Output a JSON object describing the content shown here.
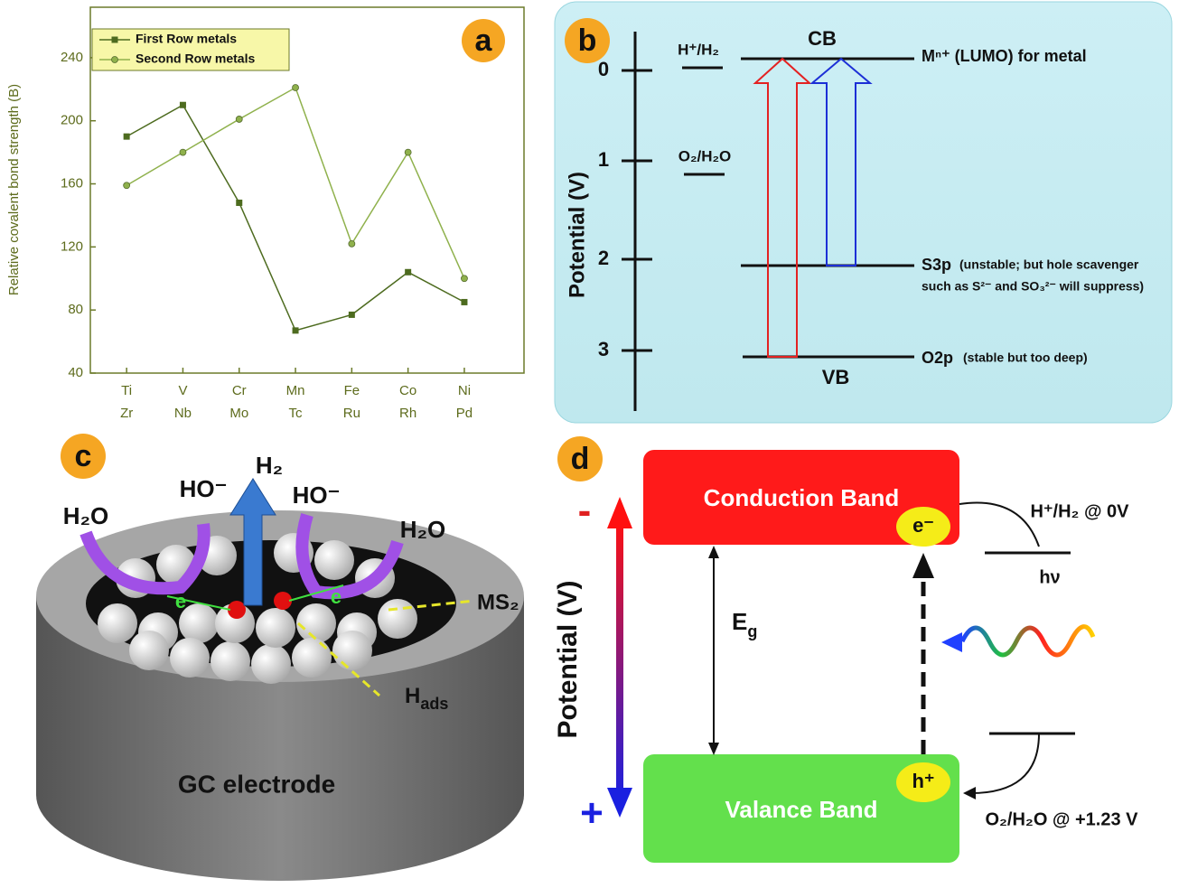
{
  "chart_data": {
    "type": "line",
    "panel_label": "a",
    "y_label": "Relative covalent bond strength (B)",
    "categories": [
      [
        "Ti",
        "Zr"
      ],
      [
        "V",
        "Nb"
      ],
      [
        "Cr",
        "Mo"
      ],
      [
        "Mn",
        "Tc"
      ],
      [
        "Fe",
        "Ru"
      ],
      [
        "Co",
        "Rh"
      ],
      [
        "Ni",
        "Pd"
      ]
    ],
    "series": [
      {
        "name": "First Row metals",
        "color": "#4d6b1f",
        "marker": "square",
        "values": [
          190,
          210,
          148,
          67,
          77,
          104,
          85
        ]
      },
      {
        "name": "Second Row metals",
        "color": "#8fb14c",
        "marker": "circle",
        "values": [
          159,
          180,
          201,
          221,
          122,
          180,
          100
        ]
      }
    ],
    "ylim": [
      40,
      272
    ],
    "yticks": [
      40,
      80,
      120,
      160,
      200,
      240
    ],
    "legend": "upper-left",
    "grid": false
  },
  "panel_b": {
    "label": "b",
    "axis_label": "Potential  (V)",
    "ticks": [
      "0",
      "1",
      "2",
      "3"
    ],
    "h_couple": "H⁺/H₂",
    "o_couple": "O₂/H₂O",
    "cb": "CB",
    "vb": "VB",
    "lumo": "Mⁿ⁺ (LUMO) for metal",
    "s3p": "S3p",
    "s3p_note": [
      "(unstable; but hole scavenger",
      "such as S²⁻ and SO₃²⁻ will suppress)"
    ],
    "o2p": "O2p",
    "o2p_note": "(stable but too deep)"
  },
  "panel_c": {
    "label": "c",
    "water_left": "H₂O",
    "hydroxide_left": "HO⁻",
    "hydrogen": "H₂",
    "hydroxide_right": "HO⁻",
    "water_right": "H₂O",
    "electron_left": "e",
    "electron_right": "e",
    "ms2": "MS₂",
    "hads": {
      "base": "H",
      "sub": "ads"
    },
    "electrode": "GC electrode"
  },
  "panel_d": {
    "label": "d",
    "axis_label": "Potential  (V)",
    "minus": "-",
    "plus": "+",
    "cb": "Conduction Band",
    "vb": "Valance Band",
    "electron": "e⁻",
    "hole": "h⁺",
    "gap": {
      "base": "E",
      "sub": "g"
    },
    "photon": "hν",
    "h_couple": "H⁺/H₂ @ 0V",
    "o_couple": "O₂/H₂O @ +1.23 V"
  }
}
